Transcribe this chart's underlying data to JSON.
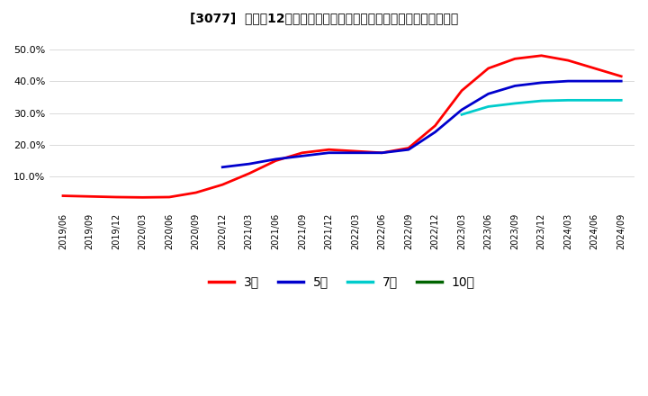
{
  "title": "[3077]  売上高12か月移動合計の対前年同期増減率の標準偏差の推移",
  "ylabel": "",
  "ylim": [
    0.0,
    0.55
  ],
  "yticks": [
    0.1,
    0.2,
    0.3,
    0.4,
    0.5
  ],
  "legend_labels": [
    "3年",
    "5年",
    "7年",
    "10年"
  ],
  "line_colors": [
    "#ff0000",
    "#0000cd",
    "#00cccc",
    "#006400"
  ],
  "background_color": "#ffffff",
  "x_dates": [
    "2019/06",
    "2019/09",
    "2019/12",
    "2020/03",
    "2020/06",
    "2020/09",
    "2020/12",
    "2021/03",
    "2021/06",
    "2021/09",
    "2021/12",
    "2022/03",
    "2022/06",
    "2022/09",
    "2022/12",
    "2023/03",
    "2023/06",
    "2023/09",
    "2023/12",
    "2024/03",
    "2024/06",
    "2024/09"
  ],
  "series_3y": [
    0.04,
    0.038,
    0.036,
    0.035,
    0.036,
    0.05,
    0.075,
    0.11,
    0.15,
    0.175,
    0.185,
    0.18,
    0.175,
    0.19,
    0.26,
    0.37,
    0.44,
    0.47,
    0.48,
    0.465,
    0.44,
    0.415
  ],
  "series_5y": [
    null,
    null,
    null,
    null,
    null,
    null,
    0.13,
    0.14,
    0.155,
    0.165,
    0.175,
    0.175,
    0.175,
    0.185,
    0.24,
    0.31,
    0.36,
    0.385,
    0.395,
    0.4,
    0.4,
    0.4
  ],
  "series_7y": [
    null,
    null,
    null,
    null,
    null,
    null,
    null,
    null,
    null,
    null,
    null,
    null,
    null,
    null,
    null,
    0.295,
    0.32,
    0.33,
    0.338,
    0.34,
    0.34,
    0.34
  ],
  "series_10y": [
    null,
    null,
    null,
    null,
    null,
    null,
    null,
    null,
    null,
    null,
    null,
    null,
    null,
    null,
    null,
    null,
    null,
    null,
    null,
    null,
    null,
    null
  ]
}
